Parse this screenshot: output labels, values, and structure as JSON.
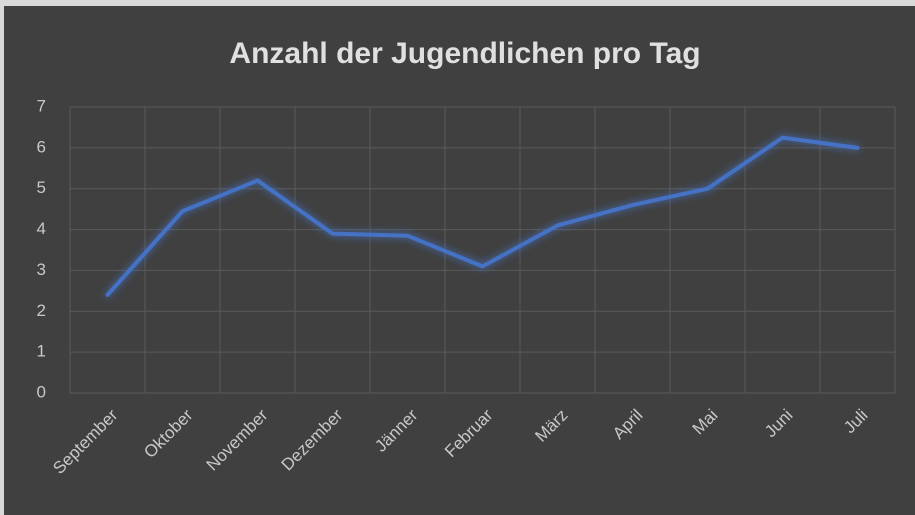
{
  "chart_data": {
    "type": "line",
    "title": "Anzahl der Jugendlichen pro Tag",
    "categories": [
      "September",
      "Oktober",
      "November",
      "Dezember",
      "Jänner",
      "Februar",
      "März",
      "April",
      "Mai",
      "Juni",
      "Juli"
    ],
    "values": [
      2.4,
      4.45,
      5.2,
      3.9,
      3.85,
      3.1,
      4.1,
      4.6,
      5.0,
      6.25,
      6.0
    ],
    "color": "#4472c4",
    "ylim": [
      0,
      7
    ],
    "yticks": [
      0,
      1,
      2,
      3,
      4,
      5,
      6,
      7
    ],
    "grid": true
  }
}
